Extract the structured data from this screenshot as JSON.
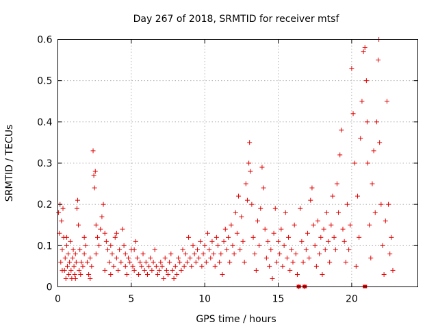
{
  "chart_data": {
    "type": "scatter",
    "title": "Day 267 of 2018, SRMTID for receiver mtsf",
    "xlabel": "GPS time / hours",
    "ylabel": "SRMTID / TECUs",
    "xlim": [
      0,
      24.5
    ],
    "ylim": [
      0,
      0.6
    ],
    "xticks": [
      0,
      5,
      10,
      15,
      20
    ],
    "xtick_labels": [
      "0",
      "5",
      "10",
      "15",
      "20"
    ],
    "yticks": [
      0,
      0.1,
      0.2,
      0.3,
      0.4,
      0.5,
      0.6
    ],
    "ytick_labels": [
      "0",
      "0.1",
      "0.2",
      "0.3",
      "0.4",
      "0.5",
      "0.6"
    ],
    "grid": true,
    "marker": "+",
    "color": "#e00000",
    "series": [
      {
        "name": "SRMTID",
        "points": [
          [
            0.05,
            0.18
          ],
          [
            0.1,
            0.13
          ],
          [
            0.15,
            0.2
          ],
          [
            0.2,
            0.06
          ],
          [
            0.25,
            0.16
          ],
          [
            0.3,
            0.09
          ],
          [
            0.35,
            0.19
          ],
          [
            0.4,
            0.12
          ],
          [
            0.45,
            0.04
          ],
          [
            0.5,
            0.07
          ],
          [
            0.55,
            0.02
          ],
          [
            0.6,
            0.1
          ],
          [
            0.65,
            0.05
          ],
          [
            0.7,
            0.08
          ],
          [
            0.75,
            0.03
          ],
          [
            0.8,
            0.06
          ],
          [
            0.85,
            0.11
          ],
          [
            0.9,
            0.04
          ],
          [
            0.95,
            0.02
          ],
          [
            1.0,
            0.07
          ],
          [
            1.05,
            0.09
          ],
          [
            1.1,
            0.05
          ],
          [
            1.15,
            0.03
          ],
          [
            1.2,
            0.08
          ],
          [
            1.25,
            0.06
          ],
          [
            1.3,
            0.19
          ],
          [
            1.35,
            0.21
          ],
          [
            1.4,
            0.15
          ],
          [
            1.45,
            0.04
          ],
          [
            1.5,
            0.09
          ],
          [
            1.55,
            0.03
          ],
          [
            1.6,
            0.06
          ],
          [
            1.7,
            0.05
          ],
          [
            1.8,
            0.08
          ],
          [
            1.9,
            0.1
          ],
          [
            2.0,
            0.06
          ],
          [
            2.1,
            0.03
          ],
          [
            2.2,
            0.07
          ],
          [
            2.3,
            0.05
          ],
          [
            2.4,
            0.33
          ],
          [
            2.45,
            0.27
          ],
          [
            2.5,
            0.24
          ],
          [
            2.55,
            0.28
          ],
          [
            2.6,
            0.08
          ],
          [
            2.7,
            0.12
          ],
          [
            2.8,
            0.1
          ],
          [
            2.9,
            0.14
          ],
          [
            3.0,
            0.17
          ],
          [
            3.1,
            0.2
          ],
          [
            3.2,
            0.13
          ],
          [
            3.3,
            0.11
          ],
          [
            3.4,
            0.09
          ],
          [
            3.5,
            0.06
          ],
          [
            3.6,
            0.03
          ],
          [
            3.7,
            0.08
          ],
          [
            3.8,
            0.05
          ],
          [
            3.9,
            0.12
          ],
          [
            4.0,
            0.07
          ],
          [
            4.1,
            0.04
          ],
          [
            4.2,
            0.09
          ],
          [
            4.3,
            0.06
          ],
          [
            4.4,
            0.14
          ],
          [
            4.5,
            0.1
          ],
          [
            4.6,
            0.05
          ],
          [
            4.7,
            0.03
          ],
          [
            4.8,
            0.07
          ],
          [
            4.9,
            0.06
          ],
          [
            5.0,
            0.09
          ],
          [
            5.1,
            0.05
          ],
          [
            5.2,
            0.04
          ],
          [
            5.3,
            0.11
          ],
          [
            5.4,
            0.07
          ],
          [
            5.5,
            0.03
          ],
          [
            5.6,
            0.06
          ],
          [
            5.7,
            0.05
          ],
          [
            5.8,
            0.08
          ],
          [
            5.9,
            0.04
          ],
          [
            6.0,
            0.06
          ],
          [
            6.1,
            0.03
          ],
          [
            6.2,
            0.05
          ],
          [
            6.3,
            0.07
          ],
          [
            6.4,
            0.04
          ],
          [
            6.5,
            0.06
          ],
          [
            6.6,
            0.09
          ],
          [
            6.7,
            0.05
          ],
          [
            6.8,
            0.03
          ],
          [
            6.9,
            0.04
          ],
          [
            7.0,
            0.06
          ],
          [
            7.1,
            0.05
          ],
          [
            7.2,
            0.02
          ],
          [
            7.3,
            0.07
          ],
          [
            7.4,
            0.04
          ],
          [
            7.5,
            0.03
          ],
          [
            7.6,
            0.06
          ],
          [
            7.7,
            0.08
          ],
          [
            7.8,
            0.04
          ],
          [
            7.9,
            0.02
          ],
          [
            8.0,
            0.05
          ],
          [
            8.1,
            0.03
          ],
          [
            8.2,
            0.07
          ],
          [
            8.3,
            0.06
          ],
          [
            8.4,
            0.04
          ],
          [
            8.5,
            0.09
          ],
          [
            8.6,
            0.05
          ],
          [
            8.7,
            0.08
          ],
          [
            8.8,
            0.06
          ],
          [
            8.9,
            0.12
          ],
          [
            9.0,
            0.07
          ],
          [
            9.1,
            0.05
          ],
          [
            9.2,
            0.1
          ],
          [
            9.3,
            0.08
          ],
          [
            9.4,
            0.06
          ],
          [
            9.5,
            0.09
          ],
          [
            9.6,
            0.07
          ],
          [
            9.7,
            0.11
          ],
          [
            9.8,
            0.05
          ],
          [
            9.9,
            0.08
          ],
          [
            10.0,
            0.1
          ],
          [
            10.1,
            0.06
          ],
          [
            10.2,
            0.13
          ],
          [
            10.3,
            0.09
          ],
          [
            10.4,
            0.07
          ],
          [
            10.5,
            0.11
          ],
          [
            10.6,
            0.08
          ],
          [
            10.7,
            0.05
          ],
          [
            10.8,
            0.12
          ],
          [
            10.9,
            0.1
          ],
          [
            11.0,
            0.06
          ],
          [
            11.1,
            0.08
          ],
          [
            11.2,
            0.03
          ],
          [
            11.3,
            0.11
          ],
          [
            11.4,
            0.14
          ],
          [
            11.5,
            0.09
          ],
          [
            11.6,
            0.12
          ],
          [
            11.7,
            0.06
          ],
          [
            11.8,
            0.15
          ],
          [
            11.9,
            0.1
          ],
          [
            12.0,
            0.08
          ],
          [
            12.1,
            0.18
          ],
          [
            12.2,
            0.13
          ],
          [
            12.3,
            0.22
          ],
          [
            12.4,
            0.09
          ],
          [
            12.5,
            0.17
          ],
          [
            12.6,
            0.11
          ],
          [
            12.7,
            0.06
          ],
          [
            12.8,
            0.25
          ],
          [
            12.9,
            0.21
          ],
          [
            13.0,
            0.3
          ],
          [
            13.05,
            0.35
          ],
          [
            13.1,
            0.28
          ],
          [
            13.2,
            0.2
          ],
          [
            13.3,
            0.12
          ],
          [
            13.4,
            0.08
          ],
          [
            13.5,
            0.04
          ],
          [
            13.6,
            0.16
          ],
          [
            13.7,
            0.1
          ],
          [
            13.8,
            0.19
          ],
          [
            13.9,
            0.29
          ],
          [
            14.0,
            0.24
          ],
          [
            14.1,
            0.14
          ],
          [
            14.2,
            0.07
          ],
          [
            14.3,
            0.11
          ],
          [
            14.4,
            0.05
          ],
          [
            14.5,
            0.09
          ],
          [
            14.6,
            0.02
          ],
          [
            14.7,
            0.13
          ],
          [
            14.8,
            0.19
          ],
          [
            14.9,
            0.06
          ],
          [
            15.0,
            0.11
          ],
          [
            15.1,
            0.08
          ],
          [
            15.2,
            0.14
          ],
          [
            15.3,
            0.05
          ],
          [
            15.4,
            0.1
          ],
          [
            15.5,
            0.18
          ],
          [
            15.6,
            0.07
          ],
          [
            15.7,
            0.12
          ],
          [
            15.8,
            0.04
          ],
          [
            15.9,
            0.09
          ],
          [
            16.0,
            0.06
          ],
          [
            16.1,
            0.15
          ],
          [
            16.2,
            0.08
          ],
          [
            16.3,
            0.03
          ],
          [
            16.4,
            0.0
          ],
          [
            16.5,
            0.19
          ],
          [
            16.6,
            0.11
          ],
          [
            16.7,
            0.06
          ],
          [
            16.8,
            0.0
          ],
          [
            16.9,
            0.09
          ],
          [
            17.0,
            0.13
          ],
          [
            17.1,
            0.07
          ],
          [
            17.2,
            0.21
          ],
          [
            17.3,
            0.24
          ],
          [
            17.4,
            0.15
          ],
          [
            17.5,
            0.1
          ],
          [
            17.6,
            0.05
          ],
          [
            17.7,
            0.16
          ],
          [
            17.8,
            0.08
          ],
          [
            17.9,
            0.12
          ],
          [
            18.0,
            0.03
          ],
          [
            18.1,
            0.14
          ],
          [
            18.2,
            0.09
          ],
          [
            18.3,
            0.18
          ],
          [
            18.4,
            0.11
          ],
          [
            18.5,
            0.06
          ],
          [
            18.6,
            0.15
          ],
          [
            18.7,
            0.22
          ],
          [
            18.8,
            0.12
          ],
          [
            18.9,
            0.09
          ],
          [
            19.0,
            0.25
          ],
          [
            19.1,
            0.18
          ],
          [
            19.2,
            0.32
          ],
          [
            19.3,
            0.38
          ],
          [
            19.4,
            0.14
          ],
          [
            19.5,
            0.11
          ],
          [
            19.6,
            0.06
          ],
          [
            19.7,
            0.2
          ],
          [
            19.8,
            0.09
          ],
          [
            19.9,
            0.15
          ],
          [
            20.0,
            0.53
          ],
          [
            20.1,
            0.42
          ],
          [
            20.2,
            0.3
          ],
          [
            20.3,
            0.05
          ],
          [
            20.4,
            0.22
          ],
          [
            20.5,
            0.12
          ],
          [
            20.6,
            0.36
          ],
          [
            20.7,
            0.45
          ],
          [
            20.8,
            0.57
          ],
          [
            20.9,
            0.58
          ],
          [
            21.0,
            0.5
          ],
          [
            21.05,
            0.4
          ],
          [
            21.1,
            0.3
          ],
          [
            21.2,
            0.15
          ],
          [
            21.3,
            0.07
          ],
          [
            21.4,
            0.25
          ],
          [
            21.5,
            0.33
          ],
          [
            21.6,
            0.18
          ],
          [
            21.7,
            0.4
          ],
          [
            21.8,
            0.55
          ],
          [
            21.85,
            0.6
          ],
          [
            21.9,
            0.35
          ],
          [
            22.0,
            0.2
          ],
          [
            22.1,
            0.1
          ],
          [
            22.2,
            0.03
          ],
          [
            22.3,
            0.16
          ],
          [
            22.4,
            0.45
          ],
          [
            22.5,
            0.2
          ],
          [
            22.6,
            0.08
          ],
          [
            22.7,
            0.12
          ],
          [
            22.8,
            0.04
          ],
          [
            0.3,
            0.04
          ],
          [
            0.6,
            0.12
          ],
          [
            1.2,
            0.02
          ],
          [
            1.8,
            0.12
          ],
          [
            2.2,
            0.02
          ],
          [
            2.6,
            0.15
          ],
          [
            3.2,
            0.04
          ],
          [
            3.6,
            0.1
          ],
          [
            4.0,
            0.13
          ],
          [
            4.6,
            0.08
          ],
          [
            5.2,
            0.09
          ]
        ]
      }
    ],
    "baseline_markers": [
      16.4,
      16.8,
      20.9
    ]
  }
}
